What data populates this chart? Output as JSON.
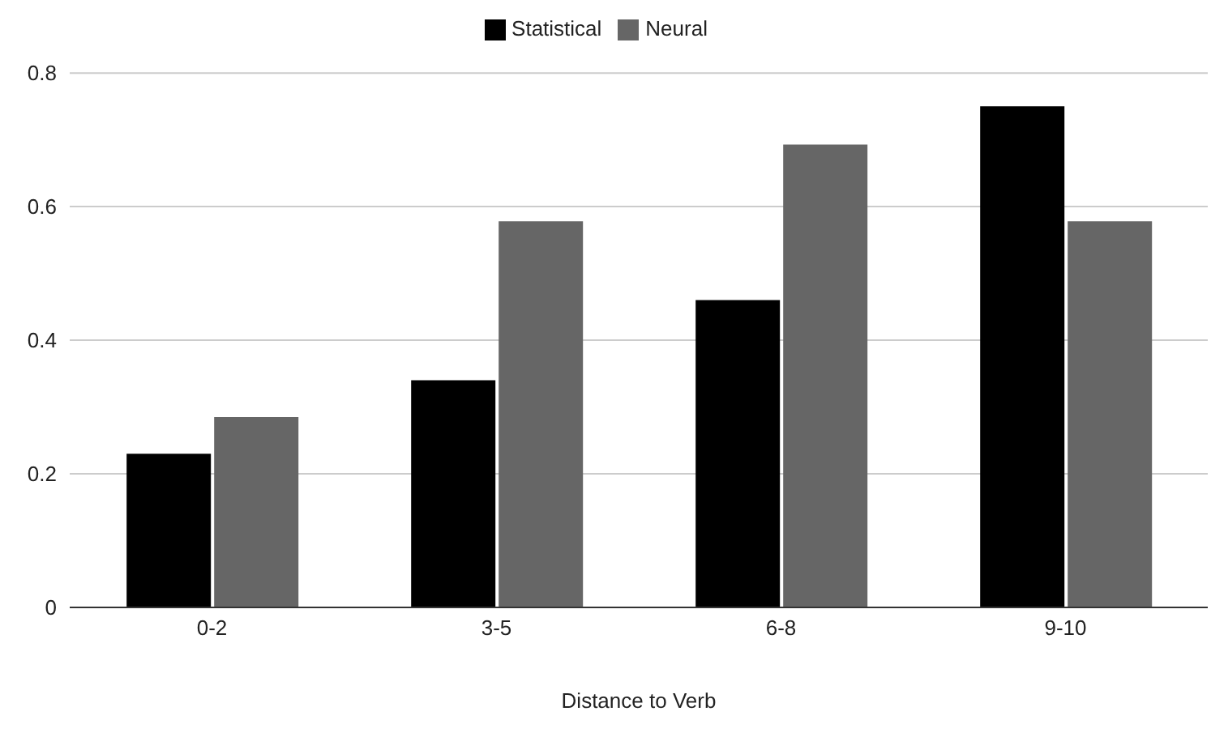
{
  "chart_data": {
    "type": "bar",
    "xlabel": "Distance to Verb",
    "categories": [
      "0-2",
      "3-5",
      "6-8",
      "9-10"
    ],
    "series": [
      {
        "name": "Statistical",
        "color": "#000000",
        "values": [
          0.23,
          0.34,
          0.46,
          0.75
        ]
      },
      {
        "name": "Neural",
        "color": "#666666",
        "values": [
          0.285,
          0.578,
          0.693,
          0.578
        ]
      }
    ],
    "ylim": [
      0,
      0.8
    ],
    "yticks": [
      0,
      0.2,
      0.4,
      0.6,
      0.8
    ],
    "grid": "y",
    "legend": "top"
  }
}
